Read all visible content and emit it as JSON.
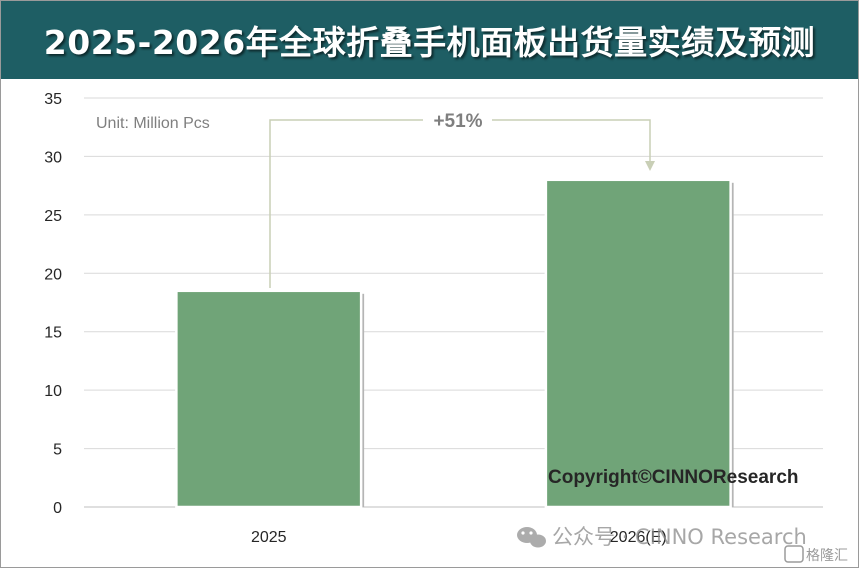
{
  "title": "2025-2026年全球折叠手机面板出货量实绩及预测",
  "unit_label": "Unit: Million Pcs",
  "growth_label": "+51%",
  "copyright": "Copyright©CINNOResearch",
  "watermark": {
    "text": "公众号 · CINNO Research",
    "brand": "格隆汇"
  },
  "colors": {
    "title_bg": "#1e5e64",
    "bar": "#70a478",
    "grid": "#d9d9d9",
    "arrow": "#c9cfb6"
  },
  "chart_data": {
    "type": "bar",
    "categories": [
      "2025",
      "2026(E)"
    ],
    "values": [
      18.5,
      28.0
    ],
    "ylim": [
      0,
      35
    ],
    "yticks": [
      0,
      5,
      10,
      15,
      20,
      25,
      30,
      35
    ],
    "grid": true,
    "xlabel": "",
    "ylabel": ""
  }
}
